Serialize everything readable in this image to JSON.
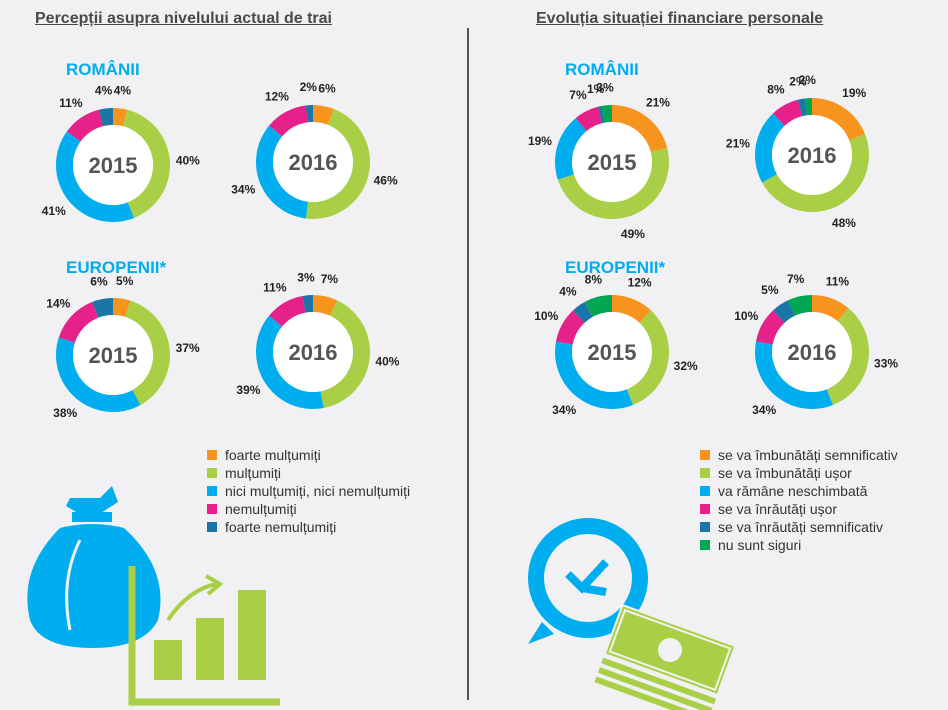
{
  "colors": {
    "foarte_multumiti": "#f7941d",
    "multumiti": "#a8cf45",
    "neutru": "#00aeef",
    "nemultumiti": "#e6228a",
    "foarte_nemultumiti": "#1b75a6",
    "nu_sunt_siguri": "#00a651",
    "label": "#00aeef",
    "year_text": "#555555"
  },
  "left": {
    "title": "Percepții asupra nivelului actual de trai",
    "romani_label": "ROMÂNII",
    "europeni_label": "EUROPENII*",
    "legend": [
      {
        "label": "foarte mulțumiți",
        "color_key": "foarte_multumiti"
      },
      {
        "label": "mulțumiți",
        "color_key": "multumiti"
      },
      {
        "label": "nici mulțumiți, nici nemulțumiți",
        "color_key": "neutru"
      },
      {
        "label": "nemulțumiți",
        "color_key": "nemultumiti"
      },
      {
        "label": "foarte nemulțumiți",
        "color_key": "foarte_nemultumiti"
      }
    ]
  },
  "right": {
    "title": "Evoluția situației financiare personale",
    "romani_label": "ROMÂNII",
    "europeni_label": "EUROPENII*",
    "legend": [
      {
        "label": "se va îmbunătăți semnificativ",
        "color_key": "foarte_multumiti"
      },
      {
        "label": "se va îmbunătăți ușor",
        "color_key": "multumiti"
      },
      {
        "label": "va rămâne neschimbată",
        "color_key": "neutru"
      },
      {
        "label": "se va înrăutăți ușor",
        "color_key": "nemultumiti"
      },
      {
        "label": "se va înrăutăți semnificativ",
        "color_key": "foarte_nemultumiti"
      },
      {
        "label": "nu sunt siguri",
        "color_key": "nu_sunt_siguri"
      }
    ]
  },
  "chart_data": [
    {
      "type": "pie",
      "title": "Percepții asupra nivelului actual de trai — Românii 2015",
      "center_label": "2015",
      "categories": [
        "foarte mulțumiți",
        "mulțumiți",
        "nici mulțumiți, nici nemulțumiți",
        "nemulțumiți",
        "foarte nemulțumiți"
      ],
      "values": [
        4,
        40,
        41,
        11,
        4
      ],
      "labels": [
        "4%",
        "40%",
        "41%",
        "11%",
        "4%"
      ]
    },
    {
      "type": "pie",
      "title": "Percepții asupra nivelului actual de trai — Românii 2016",
      "center_label": "2016",
      "categories": [
        "foarte mulțumiți",
        "mulțumiți",
        "nici mulțumiți, nici nemulțumiți",
        "nemulțumiți",
        "foarte nemulțumiți"
      ],
      "values": [
        6,
        46,
        34,
        12,
        2
      ],
      "labels": [
        "6%",
        "46%",
        "34%",
        "12%",
        "2%"
      ]
    },
    {
      "type": "pie",
      "title": "Percepții asupra nivelului actual de trai — Europenii 2015",
      "center_label": "2015",
      "categories": [
        "foarte mulțumiți",
        "mulțumiți",
        "nici mulțumiți, nici nemulțumiți",
        "nemulțumiți",
        "foarte nemulțumiți"
      ],
      "values": [
        5,
        37,
        38,
        14,
        6
      ],
      "labels": [
        "5%",
        "37%",
        "38%",
        "14%",
        "6%"
      ]
    },
    {
      "type": "pie",
      "title": "Percepții asupra nivelului actual de trai — Europenii 2016",
      "center_label": "2016",
      "categories": [
        "foarte mulțumiți",
        "mulțumiți",
        "nici mulțumiți, nici nemulțumiți",
        "nemulțumiți",
        "foarte nemulțumiți"
      ],
      "values": [
        7,
        40,
        39,
        11,
        3
      ],
      "labels": [
        "7%",
        "40%",
        "39%",
        "11%",
        "3%"
      ]
    },
    {
      "type": "pie",
      "title": "Evoluția situației financiare personale — Românii 2015",
      "center_label": "2015",
      "categories": [
        "se va îmbunătăți semnificativ",
        "se va îmbunătăți ușor",
        "va rămâne neschimbată",
        "se va înrăutăți ușor",
        "se va înrăutăți semnificativ",
        "nu sunt siguri"
      ],
      "values": [
        21,
        49,
        19,
        7,
        1,
        3
      ],
      "labels": [
        "21%",
        "49%",
        "19%",
        "7%",
        "1%",
        "3%"
      ]
    },
    {
      "type": "pie",
      "title": "Evoluția situației financiare personale — Românii 2016",
      "center_label": "2016",
      "categories": [
        "se va îmbunătăți semnificativ",
        "se va îmbunătăți ușor",
        "va rămâne neschimbată",
        "se va înrăutăți ușor",
        "se va înrăutăți semnificativ",
        "nu sunt siguri"
      ],
      "values": [
        19,
        48,
        21,
        8,
        2,
        2
      ],
      "labels": [
        "19%",
        "48%",
        "21%",
        "8%",
        "2%",
        "2%"
      ]
    },
    {
      "type": "pie",
      "title": "Evoluția situației financiare personale — Europenii 2015",
      "center_label": "2015",
      "categories": [
        "se va îmbunătăți semnificativ",
        "se va îmbunătăți ușor",
        "va rămâne neschimbată",
        "se va înrăutăți ușor",
        "se va înrăutăți semnificativ",
        "nu sunt siguri"
      ],
      "values": [
        12,
        32,
        34,
        10,
        4,
        8
      ],
      "labels": [
        "12%",
        "32%",
        "34%",
        "10%",
        "4%",
        "8%"
      ]
    },
    {
      "type": "pie",
      "title": "Evoluția situației financiare personale — Europenii 2016",
      "center_label": "2016",
      "categories": [
        "se va îmbunătăți semnificativ",
        "se va îmbunătăți ușor",
        "va rămâne neschimbată",
        "se va înrăutăți ușor",
        "se va înrăutăți semnificativ",
        "nu sunt siguri"
      ],
      "values": [
        11,
        33,
        34,
        10,
        5,
        7
      ],
      "labels": [
        "11%",
        "33%",
        "34%",
        "10%",
        "5%",
        "7%"
      ]
    }
  ]
}
